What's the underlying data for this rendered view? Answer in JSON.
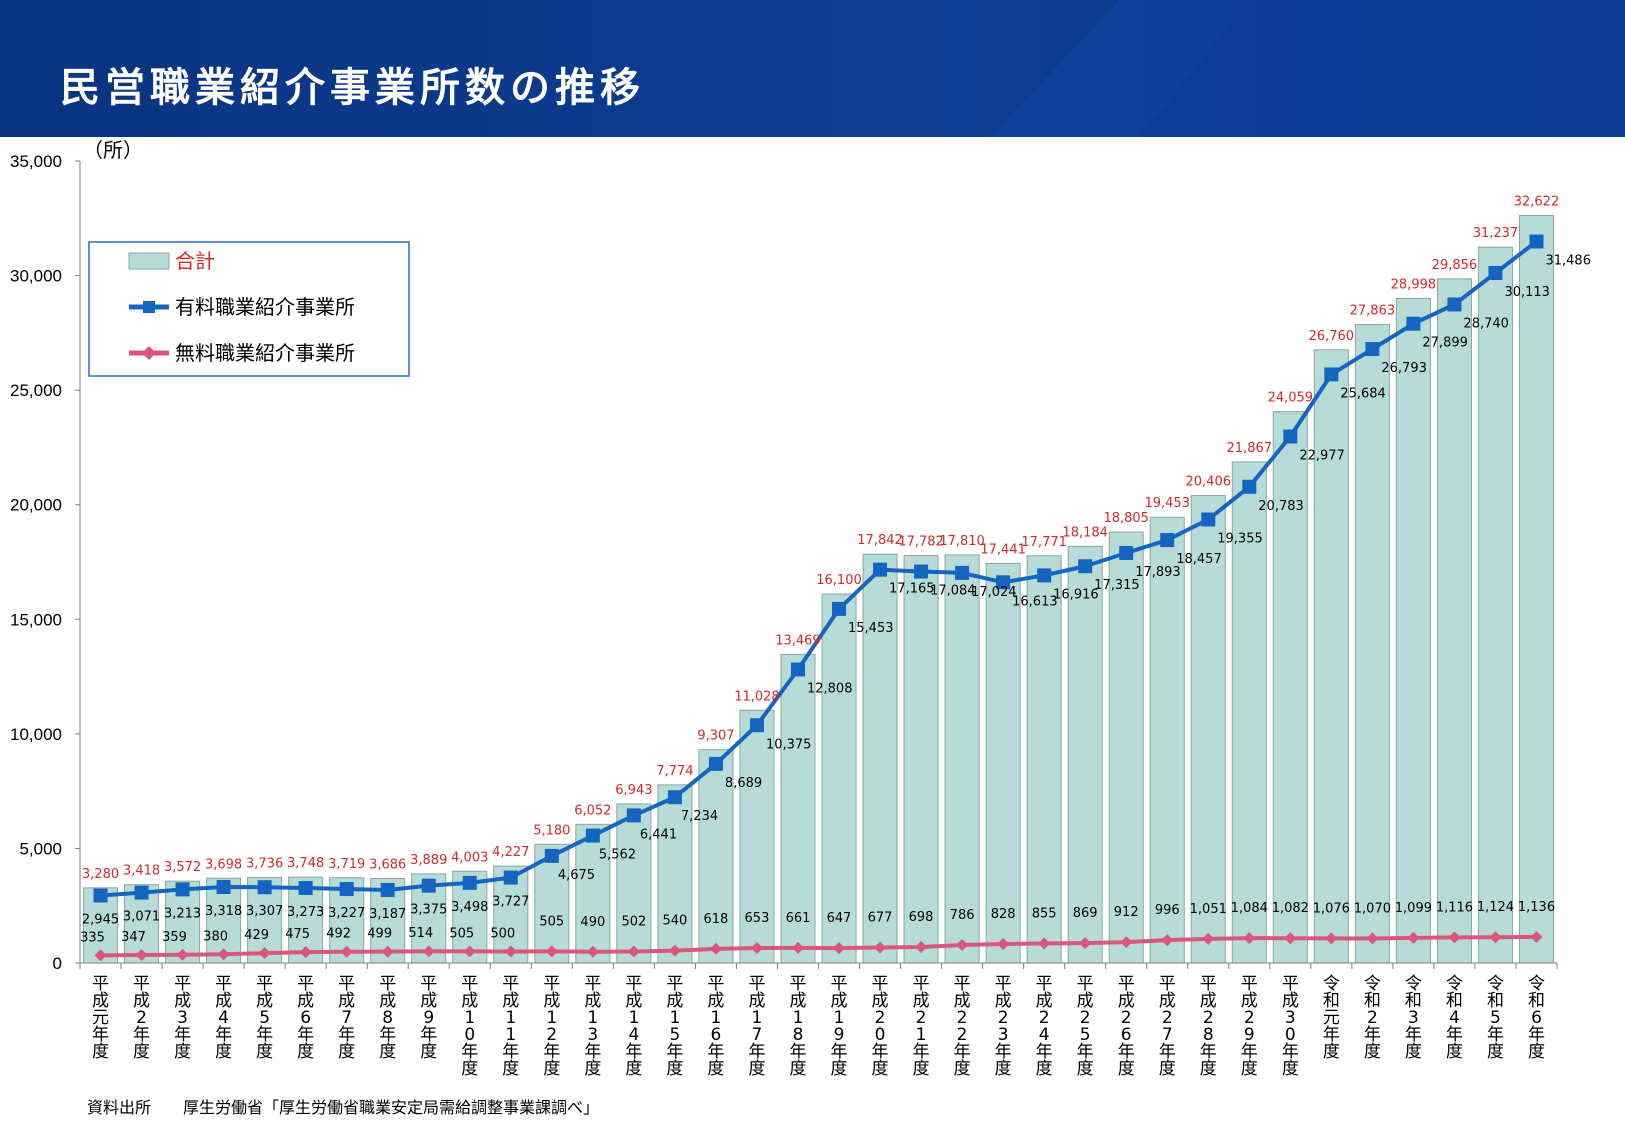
{
  "header": {
    "title": "民営職業紹介事業所数の推移"
  },
  "source_note": "資料出所　　厚生労働省「厚生労働省職業安定局需給調整事業課調べ」",
  "colors": {
    "bar_fill": "#b7dcd7",
    "bar_stroke": "#8aa6a3",
    "paid_line": "#1565c0",
    "paid_marker": "#1565c0",
    "free_line": "#d9577f",
    "total_label": "#d62828",
    "header_bg": "#0c3a8c"
  },
  "chart_data": {
    "type": "bar",
    "unit_label": "（所）",
    "ylim": [
      0,
      35000
    ],
    "yticks": [
      "0",
      "5,000",
      "10,000",
      "15,000",
      "20,000",
      "25,000",
      "30,000",
      "35,000"
    ],
    "ytick_values": [
      0,
      5000,
      10000,
      15000,
      20000,
      25000,
      30000,
      35000
    ],
    "legend_placement": "top-left",
    "categories": [
      "平成元年度",
      "平成2年度",
      "平成3年度",
      "平成4年度",
      "平成5年度",
      "平成6年度",
      "平成7年度",
      "平成8年度",
      "平成9年度",
      "平成10年度",
      "平成11年度",
      "平成12年度",
      "平成13年度",
      "平成14年度",
      "平成15年度",
      "平成16年度",
      "平成17年度",
      "平成18年度",
      "平成19年度",
      "平成20年度",
      "平成21年度",
      "平成22年度",
      "平成23年度",
      "平成24年度",
      "平成25年度",
      "平成26年度",
      "平成27年度",
      "平成28年度",
      "平成29年度",
      "平成30年度",
      "令和元年度",
      "令和2年度",
      "令和3年度",
      "令和4年度",
      "令和5年度",
      "令和6年度"
    ],
    "series": [
      {
        "name": "合計",
        "type": "bar",
        "values": [
          3280,
          3418,
          3572,
          3698,
          3736,
          3748,
          3719,
          3686,
          3889,
          4003,
          4227,
          5180,
          6052,
          6943,
          7774,
          9307,
          11028,
          13469,
          16100,
          17842,
          17782,
          17810,
          17441,
          17771,
          18184,
          18805,
          19453,
          20406,
          21867,
          24059,
          26760,
          27863,
          28998,
          29856,
          31237,
          32622
        ],
        "labels": [
          "3,280",
          "3,418",
          "3,572",
          "3,698",
          "3,736",
          "3,748",
          "3,719",
          "3,686",
          "3,889",
          "4,003",
          "4,227",
          "5,180",
          "6,052",
          "6,943",
          "7,774",
          "9,307",
          "11,028",
          "13,469",
          "16,100",
          "17,842",
          "17,782",
          "17,810",
          "17,441",
          "17,771",
          "18,184",
          "18,805",
          "19,453",
          "20,406",
          "21,867",
          "24,059",
          "26,760",
          "27,863",
          "28,998",
          "29,856",
          "31,237",
          "32,622"
        ]
      },
      {
        "name": "有料職業紹介事業所",
        "type": "line",
        "values": [
          2945,
          3071,
          3213,
          3318,
          3307,
          3273,
          3227,
          3187,
          3375,
          3498,
          3727,
          4675,
          5562,
          6441,
          7234,
          8689,
          10375,
          12808,
          15453,
          17165,
          17084,
          17024,
          16613,
          16916,
          17315,
          17893,
          18457,
          19355,
          20783,
          22977,
          25684,
          26793,
          27899,
          28740,
          30113,
          31486
        ],
        "labels": [
          "2,945",
          "3,071",
          "3,213",
          "3,318",
          "3,307",
          "3,273",
          "3,227",
          "3,187",
          "3,375",
          "3,498",
          "3,727",
          "4,675",
          "5,562",
          "6,441",
          "7,234",
          "8,689",
          "10,375",
          "12,808",
          "15,453",
          "17,165",
          "17,084",
          "17,024",
          "16,613",
          "16,916",
          "17,315",
          "17,893",
          "18,457",
          "19,355",
          "20,783",
          "22,977",
          "25,684",
          "26,793",
          "27,899",
          "28,740",
          "30,113",
          "31,486"
        ]
      },
      {
        "name": "無料職業紹介事業所",
        "type": "line",
        "values": [
          335,
          347,
          359,
          380,
          429,
          475,
          492,
          499,
          514,
          505,
          500,
          505,
          490,
          502,
          540,
          618,
          653,
          661,
          647,
          677,
          698,
          786,
          828,
          855,
          869,
          912,
          996,
          1051,
          1084,
          1082,
          1076,
          1070,
          1099,
          1116,
          1124,
          1136
        ],
        "labels": [
          "335",
          "347",
          "359",
          "380",
          "429",
          "475",
          "492",
          "499",
          "514",
          "505",
          "500",
          "505",
          "490",
          "502",
          "540",
          "618",
          "653",
          "661",
          "647",
          "677",
          "698",
          "786",
          "828",
          "855",
          "869",
          "912",
          "996",
          "1,051",
          "1,084",
          "1,082",
          "1,076",
          "1,070",
          "1,099",
          "1,116",
          "1,124",
          "1,136"
        ]
      }
    ]
  }
}
